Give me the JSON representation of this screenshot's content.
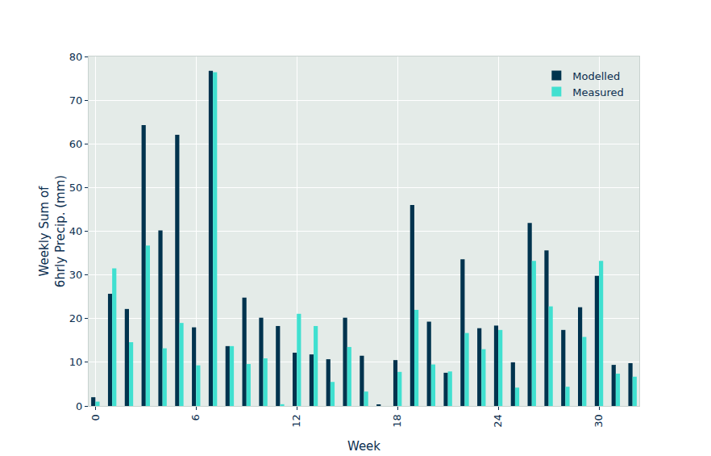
{
  "chart_data": {
    "type": "bar",
    "x_label": "Week",
    "y_label": "Weekly Sum of\n6hrly Precip. (mm)",
    "x": [
      0,
      1,
      2,
      3,
      4,
      5,
      6,
      7,
      8,
      9,
      10,
      11,
      12,
      13,
      14,
      15,
      16,
      17,
      18,
      19,
      20,
      21,
      22,
      23,
      24,
      25,
      26,
      27,
      28,
      29,
      30,
      31,
      32
    ],
    "series": [
      {
        "name": "Modelled",
        "color": "#00334e",
        "values": [
          2.0,
          25.7,
          22.2,
          64.3,
          40.2,
          62.1,
          18.0,
          76.7,
          13.7,
          24.8,
          20.2,
          18.3,
          12.2,
          11.8,
          10.7,
          20.2,
          11.5,
          0.3,
          10.5,
          46.0,
          19.3,
          7.6,
          33.6,
          17.8,
          18.4,
          10.0,
          41.9,
          35.6,
          17.4,
          22.6,
          29.8,
          9.4,
          9.8
        ]
      },
      {
        "name": "Measured",
        "color": "#40e0d0",
        "values": [
          1.0,
          31.5,
          14.6,
          36.7,
          13.2,
          19.0,
          9.3,
          76.4,
          13.7,
          9.6,
          10.9,
          0.4,
          21.1,
          18.3,
          5.5,
          13.5,
          3.3,
          0.0,
          7.8,
          22.0,
          9.5,
          7.9,
          16.7,
          13.0,
          17.4,
          4.2,
          33.2,
          22.8,
          4.4,
          15.8,
          33.2,
          7.4,
          6.7
        ]
      }
    ],
    "xlim": [
      -0.4,
      32.4
    ],
    "xticks": [
      0,
      6,
      12,
      18,
      24,
      30
    ],
    "ylim": [
      0,
      80
    ],
    "yticks": [
      0,
      10,
      20,
      30,
      40,
      50,
      60,
      70,
      80
    ],
    "grid": true,
    "legend": "upper right"
  }
}
